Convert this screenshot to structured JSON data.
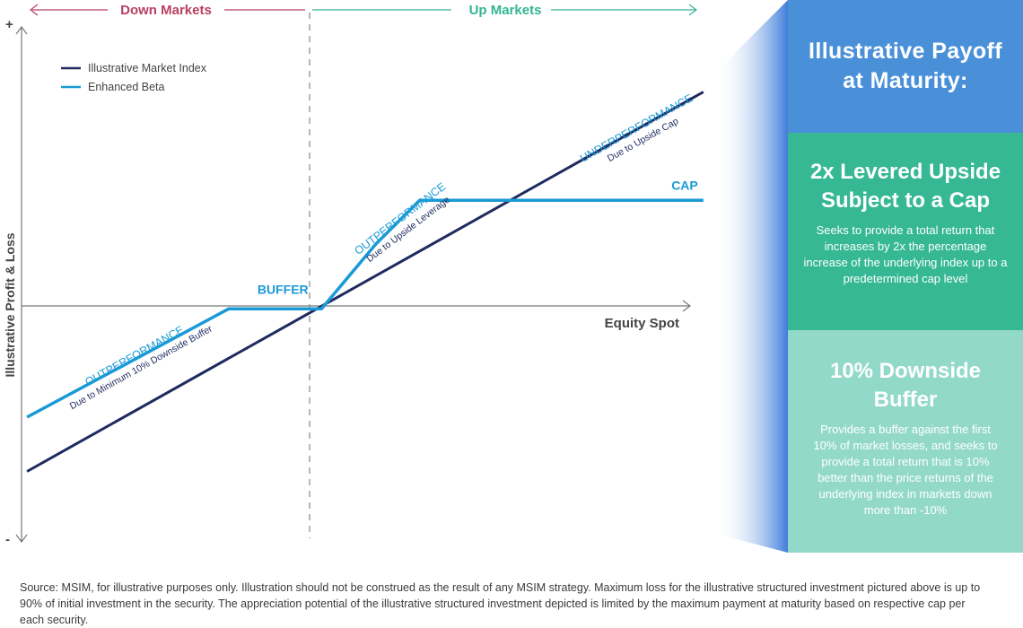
{
  "chart_data": {
    "type": "line",
    "title": "",
    "xlabel": "Equity Spot",
    "ylabel": "Illustrative Profit & Loss",
    "y_top_marker": "+",
    "y_bottom_marker": "-",
    "region_labels": {
      "left": "Down Markets",
      "right": "Up Markets"
    },
    "x_units": "illustrative market move (%)",
    "xlim": [
      -55,
      72
    ],
    "ylim": [
      -43,
      52
    ],
    "legend": {
      "position": "top-left"
    },
    "series": [
      {
        "name": "Illustrative Market Index",
        "color": "#1f2a5e",
        "x": [
          -54,
          70
        ],
        "y": [
          -30,
          40
        ]
      },
      {
        "name": "Enhanced Beta",
        "color": "#1a9ad6",
        "x": [
          -54,
          -17,
          -10,
          0,
          10,
          18,
          70
        ],
        "y": [
          -20,
          0,
          0,
          0,
          12,
          20,
          20
        ]
      }
    ],
    "annotations": [
      {
        "label": "BUFFER",
        "x": -5.5,
        "y": 1.8
      },
      {
        "label": "CAP",
        "x": 69,
        "y": 21
      },
      {
        "title": "OUTPERFORMANCE",
        "subtitle": "Due to Minimum 10% Downside Buffer",
        "x": -33,
        "y": -11
      },
      {
        "title": "OUTPERFORMANCE",
        "subtitle": "Due to Upside Leverage",
        "x": 16,
        "y": 14.5
      },
      {
        "title": "UNDERPERFORMANCE",
        "subtitle": "Due to Upside Cap",
        "x": 59,
        "y": 31
      }
    ],
    "colors": {
      "down_region": "#b83f63",
      "up_region": "#33b594",
      "axis": "#777777",
      "annotation_text": "#1f2a5e",
      "enhanced_text": "#1a9ad6"
    }
  },
  "panel": {
    "title": "Illustrative Payoff at Maturity:",
    "upside": {
      "heading": "2x Levered Upside Subject to a Cap",
      "text": "Seeks to provide a total return that increases by 2x the percentage increase of the underlying index up to a predetermined cap level"
    },
    "downside": {
      "heading": "10% Downside Buffer",
      "text": "Provides a buffer against the first 10% of market losses, and seeks to provide a total return that is 10% better than the price returns of the underlying index in markets down more than -10%"
    },
    "colors": {
      "title_bg": "#4a90d9",
      "upside_bg": "#35b893",
      "downside_bg": "#93d9c9",
      "wedge": "#2a6fd6"
    }
  },
  "footnote": "Source: MSIM, for illustrative purposes only. Illustration should not be construed as the result of any MSIM strategy. Maximum loss for the illustrative structured investment pictured above is up to 90% of initial investment in the security. The appreciation potential of the illustrative structured investment depicted is limited by the maximum payment at maturity based on respective cap per each security."
}
